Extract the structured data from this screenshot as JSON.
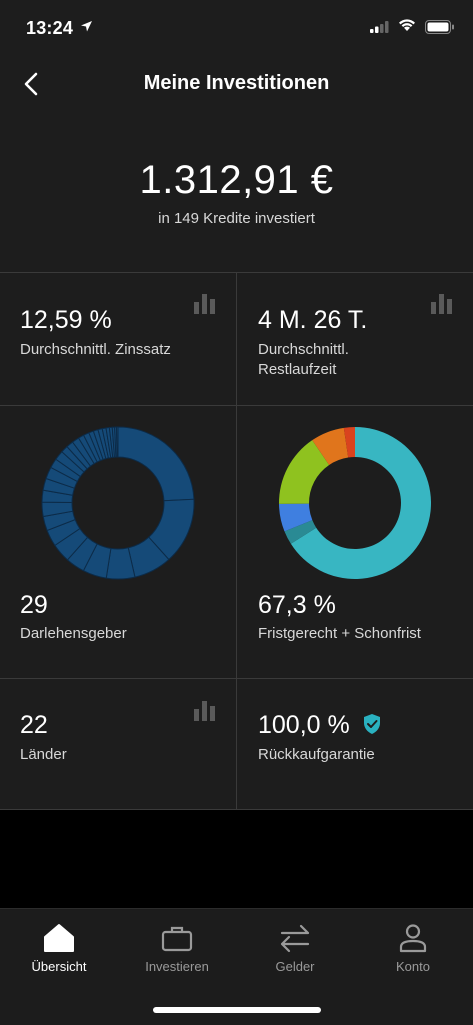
{
  "status_bar": {
    "time": "13:24"
  },
  "header": {
    "title": "Meine Investitionen"
  },
  "summary": {
    "amount": "1.312,91 €",
    "subtitle": "in 149 Kredite investiert"
  },
  "tiles": {
    "interest": {
      "value": "12,59 %",
      "label": "Durchschnittl. Zinssatz"
    },
    "term": {
      "value": "4 M. 26 T.",
      "label_line1": "Durchschnittl.",
      "label_line2": "Restlaufzeit"
    },
    "lenders": {
      "value": "29",
      "label": "Darlehensgeber"
    },
    "schedule": {
      "value": "67,3 %",
      "label": "Fristgerecht + Schonfrist"
    },
    "countries": {
      "value": "22",
      "label": "Länder"
    },
    "buyback": {
      "value": "100,0 %",
      "label": "Rückkaufgarantie"
    }
  },
  "tabbar": {
    "items": [
      {
        "label": "Übersicht",
        "icon": "home-icon",
        "active": true
      },
      {
        "label": "Investieren",
        "icon": "briefcase-icon",
        "active": false
      },
      {
        "label": "Gelder",
        "icon": "transfer-arrows-icon",
        "active": false
      },
      {
        "label": "Konto",
        "icon": "user-icon",
        "active": false
      }
    ]
  },
  "colors": {
    "lender_donut": "#154a78",
    "teal": "#38b6c2",
    "dark_teal": "#2a8a94",
    "blue": "#3f7fe0",
    "green": "#8fc21f",
    "orange": "#e0751c",
    "red": "#d9431e",
    "shield": "#2ab1c0"
  },
  "chart_data": [
    {
      "type": "pie",
      "style": "donut",
      "segments_count": 29,
      "values": [
        24,
        14,
        8,
        6,
        5,
        4,
        4,
        3.5,
        3,
        3,
        2.5,
        2.5,
        2.5,
        2,
        2,
        1.5,
        1.5,
        1.5,
        1.2,
        1.2,
        1,
        1,
        0.9,
        0.8,
        0.7,
        0.6,
        0.5,
        0.4,
        0.3
      ]
    },
    {
      "type": "pie",
      "style": "donut",
      "values": [
        67.3,
        3,
        6,
        16,
        7.3,
        2.4
      ],
      "colors": [
        "#38b6c2",
        "#2a8a94",
        "#3f7fe0",
        "#8fc21f",
        "#e0751c",
        "#d9431e"
      ]
    }
  ]
}
